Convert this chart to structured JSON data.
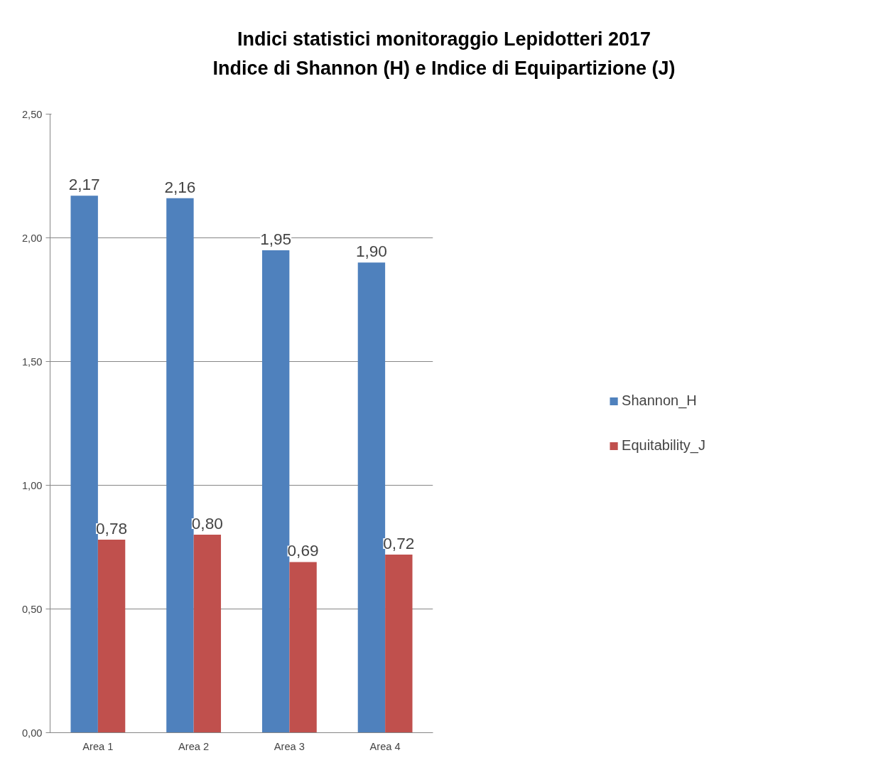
{
  "chart_data": {
    "type": "bar",
    "title": "Indici statistici monitoraggio Lepidotteri 2017\nIndice di Shannon (H) e Indice di Equipartizione (J)",
    "categories": [
      "Area 1",
      "Area 2",
      "Area 3",
      "Area 4"
    ],
    "series": [
      {
        "name": "Shannon_H",
        "color": "#4f81bd",
        "values": [
          2.17,
          2.16,
          1.95,
          1.9
        ],
        "value_labels": [
          "2,17",
          "2,16",
          "1,95",
          "1,90"
        ]
      },
      {
        "name": "Equitability_J",
        "color": "#c0504d",
        "values": [
          0.78,
          0.8,
          0.69,
          0.72
        ],
        "value_labels": [
          "0,78",
          "0,80",
          "0,69",
          "0,72"
        ]
      }
    ],
    "ylim": [
      0,
      2.5
    ],
    "yticks": [
      {
        "value": 0,
        "label": "0,00"
      },
      {
        "value": 0.5,
        "label": "0,50"
      },
      {
        "value": 1,
        "label": "1,00"
      },
      {
        "value": 1.5,
        "label": "1,50"
      },
      {
        "value": 2,
        "label": "2,00"
      },
      {
        "value": 2.5,
        "label": "2,50"
      }
    ],
    "grid": "y",
    "legend": "right"
  }
}
